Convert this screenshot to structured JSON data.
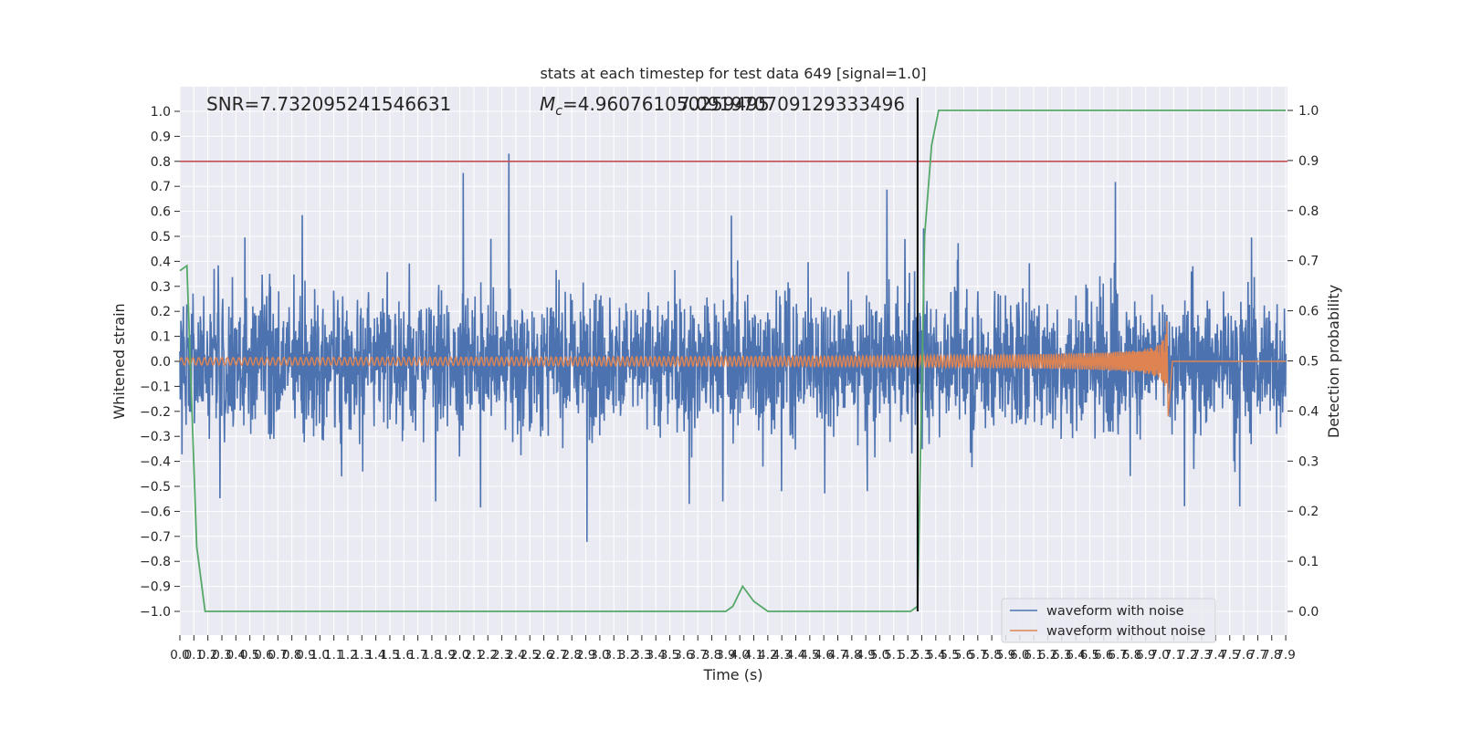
{
  "chart_data": {
    "type": "line",
    "title": "stats at each timestep for test data 649 [signal=1.0]",
    "xlabel": "Time (s)",
    "ylabel_left": "Whitened strain",
    "ylabel_right": "Detection probability",
    "xlim": [
      0.0,
      7.9
    ],
    "ylim_left": [
      -1.1,
      1.1
    ],
    "ylim_right": [
      -0.05,
      1.05
    ],
    "x_ticks": [
      "0.0",
      "0.1",
      "0.2",
      "0.3",
      "0.4",
      "0.5",
      "0.6",
      "0.7",
      "0.8",
      "0.9",
      "1.0",
      "1.1",
      "1.2",
      "1.3",
      "1.4",
      "1.5",
      "1.6",
      "1.7",
      "1.8",
      "1.9",
      "2.0",
      "2.1",
      "2.2",
      "2.3",
      "2.4",
      "2.5",
      "2.6",
      "2.7",
      "2.8",
      "2.9",
      "3.0",
      "3.1",
      "3.2",
      "3.3",
      "3.4",
      "3.5",
      "3.6",
      "3.7",
      "3.8",
      "3.9",
      "4.0",
      "4.1",
      "4.2",
      "4.3",
      "4.4",
      "4.5",
      "4.6",
      "4.7",
      "4.8",
      "4.9",
      "5.0",
      "5.1",
      "5.2",
      "5.3",
      "5.4",
      "5.5",
      "5.6",
      "5.7",
      "5.8",
      "5.9",
      "6.0",
      "6.1",
      "6.2",
      "6.3",
      "6.4",
      "6.5",
      "6.6",
      "6.7",
      "6.8",
      "6.9",
      "7.0",
      "7.1",
      "7.2",
      "7.3",
      "7.4",
      "7.5",
      "7.6",
      "7.7",
      "7.8",
      "7.9"
    ],
    "y_ticks_left": [
      "1.0",
      "0.9",
      "0.8",
      "0.7",
      "0.6",
      "0.5",
      "0.4",
      "0.3",
      "0.2",
      "0.1",
      "0.0",
      "−0.1",
      "−0.2",
      "−0.3",
      "−0.4",
      "−0.5",
      "−0.6",
      "−0.7",
      "−0.8",
      "−0.9",
      "−1.0"
    ],
    "y_ticks_right": [
      "1.0",
      "0.9",
      "0.8",
      "0.7",
      "0.6",
      "0.5",
      "0.4",
      "0.3",
      "0.2",
      "0.1",
      "0.0"
    ],
    "annotations": {
      "snr": "SNR=7.732095241546631",
      "mc_symbol": "M",
      "mc_subscript": "c",
      "mc_value": "=4.960761050259495",
      "mc_overlap": "7.091970709129333496"
    },
    "legend": {
      "placement": "lower-right",
      "entries": [
        "waveform with noise",
        "waveform without noise"
      ]
    },
    "threshold": {
      "value": 0.8,
      "color": "#c44e52"
    },
    "merger_time": 5.27,
    "series": [
      {
        "name": "waveform with noise",
        "color": "#4c72b0",
        "kind": "dense-noise",
        "approx_envelope": [
          -1.0,
          1.0
        ]
      },
      {
        "name": "waveform without noise",
        "color": "#dd8452",
        "kind": "chirp",
        "start_amplitude": 0.015,
        "peak_time": 7.05,
        "peak_values": [
          0.16,
          -0.22
        ]
      },
      {
        "name": "detection probability",
        "color": "#55a868",
        "axis": "right",
        "x": [
          0.0,
          0.05,
          0.12,
          0.18,
          3.9,
          3.95,
          4.02,
          4.1,
          4.2,
          5.22,
          5.27,
          5.32,
          5.37,
          5.42,
          7.9
        ],
        "y": [
          0.68,
          0.69,
          0.13,
          0.0,
          0.0,
          0.01,
          0.05,
          0.02,
          0.0,
          0.0,
          0.01,
          0.75,
          0.93,
          1.0,
          1.0
        ]
      }
    ]
  }
}
